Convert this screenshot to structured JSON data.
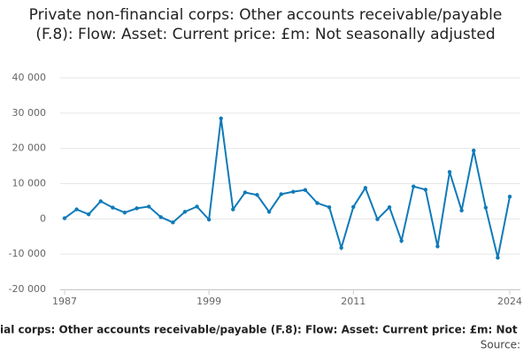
{
  "chart_data": {
    "type": "line",
    "title": "Private non-financial corps: Other accounts receivable/payable (F.8): Flow: Asset: Current price: £m: Not seasonally adjusted",
    "footer": "ial corps: Other accounts receivable/payable (F.8): Flow: Asset: Current price: £m: Not",
    "source": "Source:",
    "x": [
      1987,
      1988,
      1989,
      1990,
      1991,
      1992,
      1993,
      1994,
      1995,
      1996,
      1997,
      1998,
      1999,
      2000,
      2001,
      2002,
      2003,
      2004,
      2005,
      2006,
      2007,
      2008,
      2009,
      2010,
      2011,
      2012,
      2013,
      2014,
      2015,
      2016,
      2017,
      2018,
      2019,
      2020,
      2021,
      2022,
      2023,
      2024
    ],
    "series": [
      {
        "name": "Value",
        "color": "#0f7ab8",
        "values": [
          200,
          2700,
          1300,
          5000,
          3200,
          1800,
          3000,
          3500,
          500,
          -1000,
          2000,
          3500,
          -200,
          28500,
          2700,
          7500,
          6800,
          2000,
          7000,
          7700,
          8200,
          4500,
          3300,
          -8200,
          3400,
          8800,
          -100,
          3300,
          -6200,
          9200,
          8300,
          -7800,
          13300,
          2400,
          19400,
          3200,
          -11000,
          6300
        ]
      }
    ],
    "xlim": [
      1987,
      2024
    ],
    "xticks": [
      1987,
      1999,
      2011,
      2024
    ],
    "ylim": [
      -20000,
      40000
    ],
    "yticks": [
      {
        "value": -20000,
        "label": "-20 000"
      },
      {
        "value": -10000,
        "label": "-10 000"
      },
      0,
      {
        "value": 10000,
        "label": "10 000"
      },
      {
        "value": 20000,
        "label": "20 000"
      },
      {
        "value": 30000,
        "label": "30 000"
      },
      {
        "value": 40000,
        "label": "40 000"
      }
    ],
    "grid": true
  }
}
